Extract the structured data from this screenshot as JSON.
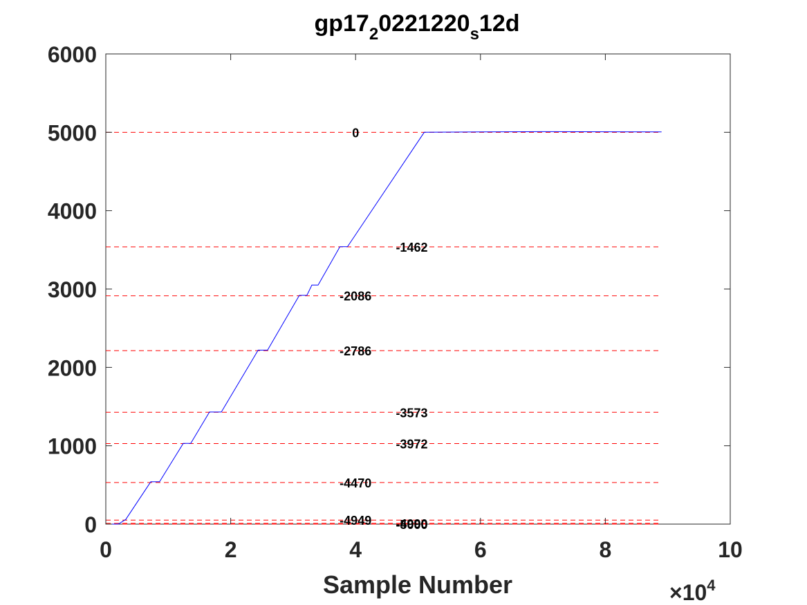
{
  "chart_data": {
    "type": "line",
    "title": {
      "base": "gp17",
      "sub1": "2",
      "mid": "0221220",
      "sub2": "s",
      "tail": "12d"
    },
    "xlabel": "Sample Number",
    "ylabel": "",
    "x_exponent_label": {
      "prefix": "×10",
      "exponent": "4"
    },
    "xlim": [
      0,
      100000
    ],
    "ylim": [
      0,
      6000
    ],
    "x_ticks": [
      0,
      20000,
      40000,
      60000,
      80000,
      100000
    ],
    "x_tick_labels": [
      "0",
      "2",
      "4",
      "6",
      "8",
      "10"
    ],
    "y_ticks": [
      0,
      1000,
      2000,
      3000,
      4000,
      5000,
      6000
    ],
    "y_tick_labels": [
      "0",
      "1000",
      "2000",
      "3000",
      "4000",
      "5000",
      "6000"
    ],
    "grid": false,
    "colors": {
      "series": "#0000ff",
      "reference_lines": "#ff0000",
      "axes": "#262626",
      "labels": "#000000"
    },
    "series": [
      {
        "color": "#0000ff",
        "x": [
          0,
          2000,
          3200,
          7200,
          8600,
          12400,
          13600,
          16600,
          18500,
          24400,
          25900,
          31000,
          32200,
          33000,
          34000,
          37500,
          38700,
          51000,
          60000,
          70000,
          89000
        ],
        "y": [
          0,
          0,
          60,
          540,
          540,
          1030,
          1030,
          1430,
          1430,
          2220,
          2220,
          2920,
          2920,
          3050,
          3050,
          3540,
          3540,
          5000,
          5005,
          5008,
          5005
        ]
      }
    ],
    "reference_lines": {
      "x_start": 0,
      "x_end": 89000,
      "levels": [
        {
          "y": 5000,
          "label": "0",
          "label_x": 40000
        },
        {
          "y": 3538,
          "label": "-1462",
          "label_x": 49000
        },
        {
          "y": 2914,
          "label": "-2086",
          "label_x": 40000
        },
        {
          "y": 2214,
          "label": "-2786",
          "label_x": 40000
        },
        {
          "y": 1427,
          "label": "-3573",
          "label_x": 49000
        },
        {
          "y": 1028,
          "label": "-3972",
          "label_x": 49000
        },
        {
          "y": 530,
          "label": "-4470",
          "label_x": 40000
        },
        {
          "y": 51,
          "label": "-4949",
          "label_x": 40000
        },
        {
          "y": 10,
          "label": "-4990",
          "label_x": 49000
        },
        {
          "y": 0,
          "label": "-5000",
          "label_x": 49000
        }
      ]
    }
  }
}
